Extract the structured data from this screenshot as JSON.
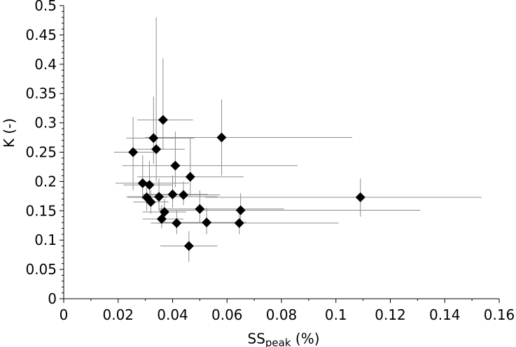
{
  "chart_data": {
    "type": "scatter",
    "xlabel_main": "SS",
    "xlabel_sub": "peak",
    "xlabel_unit": " (%)",
    "ylabel": "K (-)",
    "xlim": [
      0,
      0.16
    ],
    "ylim": [
      0,
      0.5
    ],
    "x_ticks": [
      {
        "value": 0,
        "label": "0"
      },
      {
        "value": 0.02,
        "label": "0.02"
      },
      {
        "value": 0.04,
        "label": "0.04"
      },
      {
        "value": 0.06,
        "label": "0.06"
      },
      {
        "value": 0.08,
        "label": "0.08"
      },
      {
        "value": 0.1,
        "label": "0.1"
      },
      {
        "value": 0.12,
        "label": "0.12"
      },
      {
        "value": 0.14,
        "label": "0.14"
      },
      {
        "value": 0.16,
        "label": "0.16"
      }
    ],
    "y_ticks": [
      {
        "value": 0,
        "label": "0"
      },
      {
        "value": 0.05,
        "label": "0.05"
      },
      {
        "value": 0.1,
        "label": "0.1"
      },
      {
        "value": 0.15,
        "label": "0.15"
      },
      {
        "value": 0.2,
        "label": "0.2"
      },
      {
        "value": 0.25,
        "label": "0.25"
      },
      {
        "value": 0.3,
        "label": "0.3"
      },
      {
        "value": 0.35,
        "label": "0.35"
      },
      {
        "value": 0.4,
        "label": "0.4"
      },
      {
        "value": 0.45,
        "label": "0.45"
      },
      {
        "value": 0.5,
        "label": "0.5"
      }
    ],
    "marker": "diamond",
    "marker_color": "#000000",
    "error_bar_color": "#8c8c8c",
    "grid": false,
    "points": [
      {
        "x": 0.0255,
        "y": 0.25,
        "xerr": [
          0.0185,
          0.0335
        ],
        "yerr": [
          0.185,
          0.31
        ]
      },
      {
        "x": 0.033,
        "y": 0.274,
        "xerr": [
          0.023,
          0.048
        ],
        "yerr": [
          0.23,
          0.345
        ]
      },
      {
        "x": 0.0365,
        "y": 0.305,
        "xerr": [
          0.027,
          0.0475
        ],
        "yerr": [
          0.255,
          0.41
        ]
      },
      {
        "x": 0.034,
        "y": 0.255,
        "xerr": [
          0.0245,
          0.0445
        ],
        "yerr": [
          0.2,
          0.48
        ]
      },
      {
        "x": 0.058,
        "y": 0.275,
        "xerr": [
          0.03,
          0.106
        ],
        "yerr": [
          0.21,
          0.34
        ]
      },
      {
        "x": 0.041,
        "y": 0.227,
        "xerr": [
          0.0215,
          0.086
        ],
        "yerr": [
          0.19,
          0.285
        ]
      },
      {
        "x": 0.0465,
        "y": 0.208,
        "xerr": [
          0.027,
          0.066
        ],
        "yerr": [
          0.175,
          0.275
        ]
      },
      {
        "x": 0.029,
        "y": 0.197,
        "xerr": [
          0.019,
          0.046
        ],
        "yerr": [
          0.17,
          0.245
        ]
      },
      {
        "x": 0.0315,
        "y": 0.194,
        "xerr": [
          0.022,
          0.04
        ],
        "yerr": [
          0.175,
          0.235
        ]
      },
      {
        "x": 0.0305,
        "y": 0.173,
        "xerr": [
          0.0235,
          0.038
        ],
        "yerr": [
          0.15,
          0.2
        ]
      },
      {
        "x": 0.032,
        "y": 0.165,
        "xerr": [
          0.0255,
          0.0385
        ],
        "yerr": [
          0.145,
          0.185
        ]
      },
      {
        "x": 0.035,
        "y": 0.174,
        "xerr": [
          0.023,
          0.0565
        ],
        "yerr": [
          0.15,
          0.205
        ]
      },
      {
        "x": 0.04,
        "y": 0.178,
        "xerr": [
          0.029,
          0.053
        ],
        "yerr": [
          0.155,
          0.21
        ]
      },
      {
        "x": 0.044,
        "y": 0.177,
        "xerr": [
          0.0315,
          0.0575
        ],
        "yerr": [
          0.16,
          0.2
        ]
      },
      {
        "x": 0.037,
        "y": 0.148,
        "xerr": [
          0.029,
          0.045
        ],
        "yerr": [
          0.13,
          0.17
        ]
      },
      {
        "x": 0.036,
        "y": 0.136,
        "xerr": [
          0.029,
          0.044
        ],
        "yerr": [
          0.12,
          0.16
        ]
      },
      {
        "x": 0.0415,
        "y": 0.129,
        "xerr": [
          0.032,
          0.051
        ],
        "yerr": [
          0.11,
          0.15
        ]
      },
      {
        "x": 0.05,
        "y": 0.153,
        "xerr": [
          0.035,
          0.081
        ],
        "yerr": [
          0.13,
          0.185
        ]
      },
      {
        "x": 0.0525,
        "y": 0.13,
        "xerr": [
          0.037,
          0.067
        ],
        "yerr": [
          0.11,
          0.155
        ]
      },
      {
        "x": 0.065,
        "y": 0.151,
        "xerr": [
          0.035,
          0.131
        ],
        "yerr": [
          0.13,
          0.18
        ]
      },
      {
        "x": 0.0645,
        "y": 0.129,
        "xerr": [
          0.034,
          0.101
        ],
        "yerr": [
          0.11,
          0.15
        ]
      },
      {
        "x": 0.046,
        "y": 0.09,
        "xerr": [
          0.0355,
          0.0565
        ],
        "yerr": [
          0.063,
          0.115
        ]
      },
      {
        "x": 0.109,
        "y": 0.173,
        "xerr": [
          0.052,
          0.1535
        ],
        "yerr": [
          0.14,
          0.205
        ]
      }
    ]
  }
}
